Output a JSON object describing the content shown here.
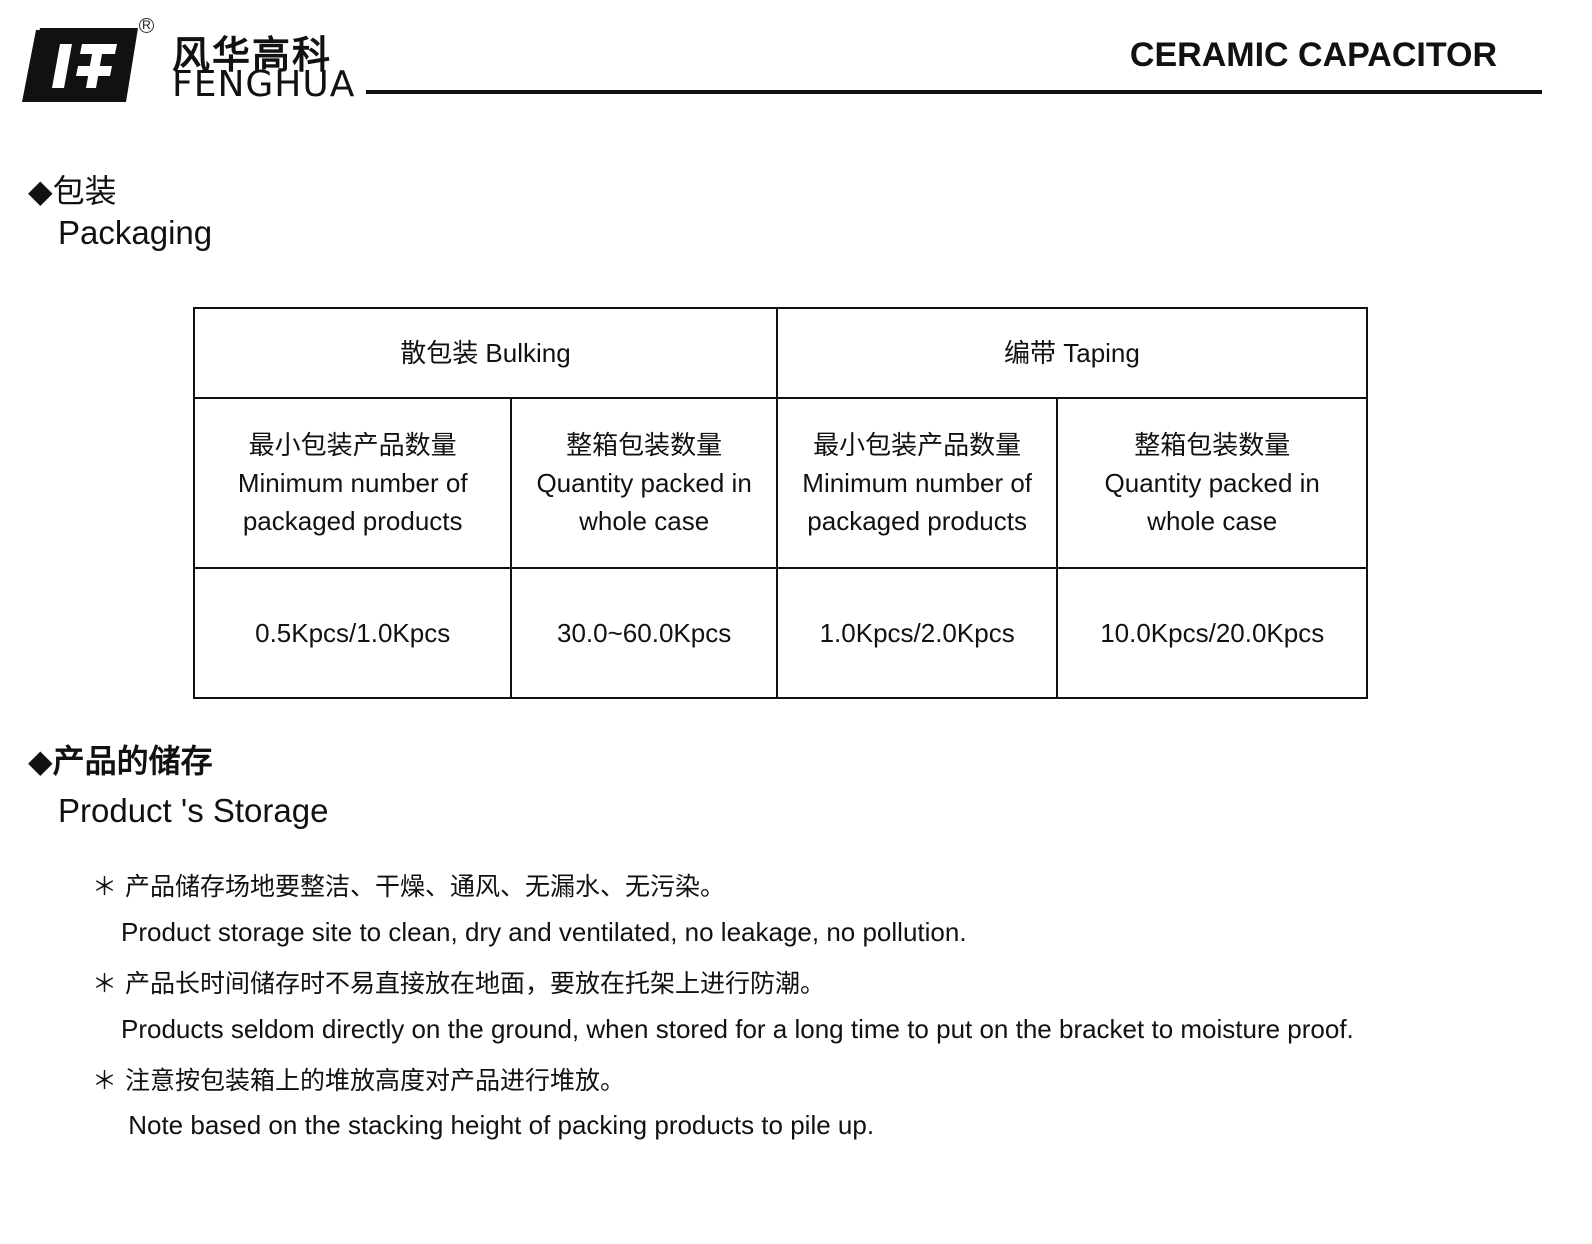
{
  "header": {
    "logo_cn": "风华高科",
    "logo_en": "FENGHUA",
    "registered_mark": "R",
    "title": "CERAMIC CAPACITOR"
  },
  "packaging": {
    "heading_cn": "◆包装",
    "heading_en": "Packaging",
    "table": {
      "groups": [
        "散包装 Bulking",
        "编带 Taping"
      ],
      "columns": [
        {
          "cn": "最小包装产品数量",
          "en1": "Minimum number of",
          "en2": "packaged products"
        },
        {
          "cn": "整箱包装数量",
          "en1": "Quantity packed in",
          "en2": "whole case"
        },
        {
          "cn": "最小包装产品数量",
          "en1": "Minimum number of",
          "en2": "packaged products"
        },
        {
          "cn": "整箱包装数量",
          "en1": "Quantity packed in",
          "en2": "whole case"
        }
      ],
      "values": [
        "0.5Kpcs/1.0Kpcs",
        "30.0~60.0Kpcs",
        "1.0Kpcs/2.0Kpcs",
        "10.0Kpcs/20.0Kpcs"
      ]
    }
  },
  "storage": {
    "heading_cn": "◆产品的储存",
    "heading_en": "Product 's Storage",
    "notes": [
      {
        "cn": "＊ 产品储存场地要整洁、干燥、通风、无漏水、无污染。",
        "en": "Product storage site to clean, dry and ventilated, no leakage, no pollution."
      },
      {
        "cn": "＊ 产品长时间储存时不易直接放在地面，要放在托架上进行防潮。",
        "en": "Products seldom directly on the ground, when stored for a long time to put on the bracket to moisture proof."
      },
      {
        "cn": "＊ 注意按包装箱上的堆放高度对产品进行堆放。",
        "en": " Note based on the stacking height of packing products to pile up."
      }
    ]
  }
}
